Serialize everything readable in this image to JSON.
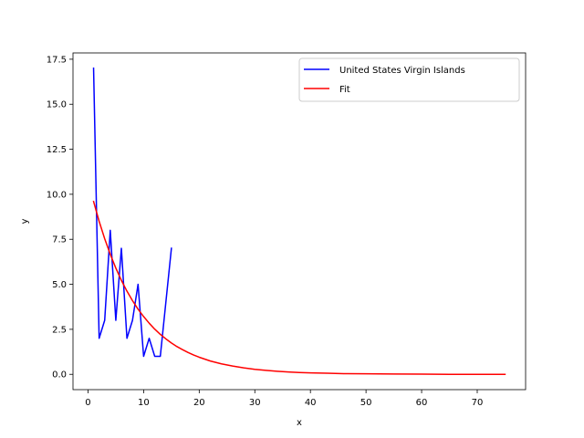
{
  "chart_data": {
    "type": "line",
    "title": "",
    "xlabel": "x",
    "ylabel": "y",
    "xlim": [
      -2.7,
      78.7
    ],
    "ylim": [
      -0.85,
      17.85
    ],
    "xticks": [
      0,
      10,
      20,
      30,
      40,
      50,
      60,
      70
    ],
    "yticks": [
      0.0,
      2.5,
      5.0,
      7.5,
      10.0,
      12.5,
      15.0,
      17.5
    ],
    "xtick_labels": [
      "0",
      "10",
      "20",
      "30",
      "40",
      "50",
      "60",
      "70"
    ],
    "ytick_labels": [
      "0.0",
      "2.5",
      "5.0",
      "7.5",
      "10.0",
      "12.5",
      "15.0",
      "17.5"
    ],
    "grid": false,
    "legend_position": "top-right",
    "series": [
      {
        "name": "United States Virgin Islands",
        "color": "#0000ff",
        "x": [
          1,
          2,
          3,
          4,
          5,
          6,
          7,
          8,
          9,
          10,
          11,
          12,
          13,
          14,
          15
        ],
        "y": [
          17,
          2,
          3,
          8,
          3,
          7,
          2,
          3,
          5,
          1,
          2,
          1,
          1,
          4,
          7
        ]
      },
      {
        "name": "Fit",
        "color": "#ff0000",
        "x": [
          1,
          2,
          3,
          4,
          5,
          6,
          7,
          8,
          9,
          10,
          11,
          12,
          13,
          14,
          15,
          16,
          17,
          18,
          19,
          20,
          22,
          24,
          26,
          28,
          30,
          32,
          34,
          36,
          38,
          40,
          43,
          46,
          50,
          55,
          60,
          65,
          70,
          75
        ],
        "y": [
          9.6,
          8.5,
          7.53,
          6.67,
          5.9,
          5.22,
          4.62,
          4.09,
          3.62,
          3.21,
          2.84,
          2.51,
          2.22,
          1.97,
          1.74,
          1.54,
          1.37,
          1.21,
          1.07,
          0.95,
          0.74,
          0.58,
          0.46,
          0.36,
          0.28,
          0.22,
          0.17,
          0.13,
          0.1,
          0.08,
          0.06,
          0.04,
          0.03,
          0.02,
          0.01,
          0.0,
          0.0,
          0.0
        ]
      }
    ]
  }
}
